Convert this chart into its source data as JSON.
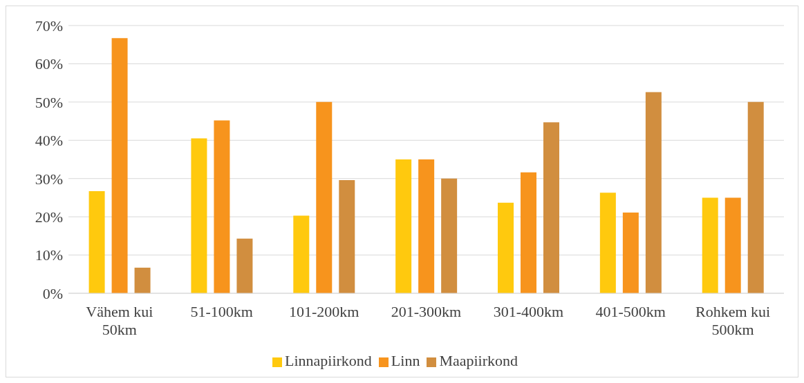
{
  "chart_data": {
    "type": "bar",
    "categories": [
      "Vähem kui 50km",
      "51-100km",
      "101-200km",
      "201-300km",
      "301-400km",
      "401-500km",
      "Rohkem kui 500km"
    ],
    "series": [
      {
        "name": "Linnapiirkond",
        "color": "#ffc90e",
        "values": [
          26.7,
          40.5,
          20.3,
          35,
          23.7,
          26.3,
          25
        ]
      },
      {
        "name": "Linn",
        "color": "#f7941d",
        "values": [
          66.7,
          45.2,
          50,
          35,
          31.6,
          21.1,
          25
        ]
      },
      {
        "name": "Maapiirkond",
        "color": "#d18e3f",
        "values": [
          6.7,
          14.3,
          29.6,
          30,
          44.7,
          52.6,
          50
        ]
      }
    ],
    "ylim": [
      0,
      70
    ],
    "yticks": [
      {
        "value": 0,
        "label": "0%"
      },
      {
        "value": 10,
        "label": "10%"
      },
      {
        "value": 20,
        "label": "20%"
      },
      {
        "value": 30,
        "label": "30%"
      },
      {
        "value": 40,
        "label": "40%"
      },
      {
        "value": 50,
        "label": "50%"
      },
      {
        "value": 60,
        "label": "60%"
      },
      {
        "value": 70,
        "label": "70%"
      }
    ],
    "grid": "y",
    "legend": "bottom"
  }
}
